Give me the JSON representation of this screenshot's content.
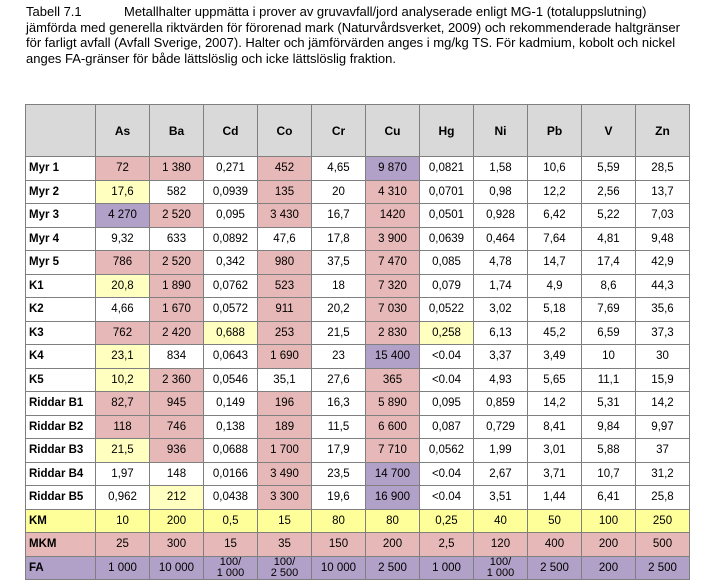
{
  "caption": {
    "label": "Tabell 7.1",
    "text": "Metallhalter uppmätta i prover av gruvavfall/jord analyserade enligt MG-1 (totaluppslutning) jämförda med generella riktvärden för förorenad mark (Naturvårdsverket, 2009) och rekommenderade haltgränser för farligt avfall (Avfall Sverige, 2007). Halter och jämförvärden anges i mg/kg TS. För kadmium, kobolt och nickel anges FA-gränser för både lättslöslig och icke lättslöslig fraktion."
  },
  "colors": {
    "pink": "#e6b8b7",
    "yellow": "#ffffc0",
    "purple": "#b1a0c7",
    "header": "#d9d9d9"
  },
  "headers": [
    "",
    "As",
    "Ba",
    "Cd",
    "Co",
    "Cr",
    "Cu",
    "Hg",
    "Ni",
    "Pb",
    "V",
    "Zn"
  ],
  "rows": [
    {
      "label": "Myr 1",
      "cells": [
        {
          "v": "72",
          "c": "pink"
        },
        {
          "v": "1 380",
          "c": "pink"
        },
        {
          "v": "0,271"
        },
        {
          "v": "452",
          "c": "pink"
        },
        {
          "v": "4,65"
        },
        {
          "v": "9 870",
          "c": "purple"
        },
        {
          "v": "0,0821"
        },
        {
          "v": "1,58"
        },
        {
          "v": "10,6"
        },
        {
          "v": "5,59"
        },
        {
          "v": "28,5"
        }
      ]
    },
    {
      "label": "Myr 2",
      "cells": [
        {
          "v": "17,6",
          "c": "yellow"
        },
        {
          "v": "582"
        },
        {
          "v": "0,0939"
        },
        {
          "v": "135",
          "c": "pink"
        },
        {
          "v": "20"
        },
        {
          "v": "4 310",
          "c": "pink"
        },
        {
          "v": "0,0701"
        },
        {
          "v": "0,98"
        },
        {
          "v": "12,2"
        },
        {
          "v": "2,56"
        },
        {
          "v": "13,7"
        }
      ]
    },
    {
      "label": "Myr 3",
      "cells": [
        {
          "v": "4 270",
          "c": "purple"
        },
        {
          "v": "2 520",
          "c": "pink"
        },
        {
          "v": "0,095"
        },
        {
          "v": "3 430",
          "c": "pink"
        },
        {
          "v": "16,7"
        },
        {
          "v": "1420",
          "c": "pink"
        },
        {
          "v": "0,0501"
        },
        {
          "v": "0,928"
        },
        {
          "v": "6,42"
        },
        {
          "v": "5,22"
        },
        {
          "v": "7,03"
        }
      ]
    },
    {
      "label": "Myr 4",
      "cells": [
        {
          "v": "9,32"
        },
        {
          "v": "633"
        },
        {
          "v": "0,0892"
        },
        {
          "v": "47,6"
        },
        {
          "v": "17,8"
        },
        {
          "v": "3 900",
          "c": "pink"
        },
        {
          "v": "0,0639"
        },
        {
          "v": "0,464"
        },
        {
          "v": "7,64"
        },
        {
          "v": "4,81"
        },
        {
          "v": "9,48"
        }
      ]
    },
    {
      "label": "Myr 5",
      "cells": [
        {
          "v": "786",
          "c": "pink"
        },
        {
          "v": "2 520",
          "c": "pink"
        },
        {
          "v": "0,342"
        },
        {
          "v": "980",
          "c": "pink"
        },
        {
          "v": "37,5"
        },
        {
          "v": "7 470",
          "c": "pink"
        },
        {
          "v": "0,085"
        },
        {
          "v": "4,78"
        },
        {
          "v": "14,7"
        },
        {
          "v": "17,4"
        },
        {
          "v": "42,9"
        }
      ]
    },
    {
      "label": "K1",
      "cells": [
        {
          "v": "20,8",
          "c": "yellow"
        },
        {
          "v": "1 890",
          "c": "pink"
        },
        {
          "v": "0,0762"
        },
        {
          "v": "523",
          "c": "pink"
        },
        {
          "v": "18"
        },
        {
          "v": "7 320",
          "c": "pink"
        },
        {
          "v": "0,079"
        },
        {
          "v": "1,74"
        },
        {
          "v": "4,9"
        },
        {
          "v": "8,6"
        },
        {
          "v": "44,3"
        }
      ]
    },
    {
      "label": "K2",
      "cells": [
        {
          "v": "4,66"
        },
        {
          "v": "1 670",
          "c": "pink"
        },
        {
          "v": "0,0572"
        },
        {
          "v": "911",
          "c": "pink"
        },
        {
          "v": "20,2"
        },
        {
          "v": "7 030",
          "c": "pink"
        },
        {
          "v": "0,0522"
        },
        {
          "v": "3,02"
        },
        {
          "v": "5,18"
        },
        {
          "v": "7,69"
        },
        {
          "v": "35,6"
        }
      ]
    },
    {
      "label": "K3",
      "cells": [
        {
          "v": "762",
          "c": "pink"
        },
        {
          "v": "2 420",
          "c": "pink"
        },
        {
          "v": "0,688",
          "c": "yellow"
        },
        {
          "v": "253",
          "c": "pink"
        },
        {
          "v": "21,5"
        },
        {
          "v": "2 830",
          "c": "pink"
        },
        {
          "v": "0,258",
          "c": "yellow"
        },
        {
          "v": "6,13"
        },
        {
          "v": "45,2"
        },
        {
          "v": "6,59"
        },
        {
          "v": "37,3"
        }
      ]
    },
    {
      "label": "K4",
      "cells": [
        {
          "v": "23,1",
          "c": "yellow"
        },
        {
          "v": "834"
        },
        {
          "v": "0,0643"
        },
        {
          "v": "1 690",
          "c": "pink"
        },
        {
          "v": "23"
        },
        {
          "v": "15 400",
          "c": "purple"
        },
        {
          "v": "<0.04"
        },
        {
          "v": "3,37"
        },
        {
          "v": "3,49"
        },
        {
          "v": "10"
        },
        {
          "v": "30"
        }
      ]
    },
    {
      "label": "K5",
      "cells": [
        {
          "v": "10,2",
          "c": "yellow"
        },
        {
          "v": "2 360",
          "c": "pink"
        },
        {
          "v": "0,0546"
        },
        {
          "v": "35,1"
        },
        {
          "v": "27,6"
        },
        {
          "v": "365",
          "c": "pink"
        },
        {
          "v": "<0.04"
        },
        {
          "v": "4,93"
        },
        {
          "v": "5,65"
        },
        {
          "v": "11,1"
        },
        {
          "v": "15,9"
        }
      ]
    },
    {
      "label": "Riddar B1",
      "cells": [
        {
          "v": "82,7",
          "c": "pink"
        },
        {
          "v": "945",
          "c": "pink"
        },
        {
          "v": "0,149"
        },
        {
          "v": "196",
          "c": "pink"
        },
        {
          "v": "16,3"
        },
        {
          "v": "5 890",
          "c": "pink"
        },
        {
          "v": "0,095"
        },
        {
          "v": "0,859"
        },
        {
          "v": "14,2"
        },
        {
          "v": "5,31"
        },
        {
          "v": "14,2"
        }
      ]
    },
    {
      "label": "Riddar B2",
      "cells": [
        {
          "v": "118",
          "c": "pink"
        },
        {
          "v": "746",
          "c": "pink"
        },
        {
          "v": "0,138"
        },
        {
          "v": "189",
          "c": "pink"
        },
        {
          "v": "11,5"
        },
        {
          "v": "6 600",
          "c": "pink"
        },
        {
          "v": "0,087"
        },
        {
          "v": "0,729"
        },
        {
          "v": "8,41"
        },
        {
          "v": "9,84"
        },
        {
          "v": "9,97"
        }
      ]
    },
    {
      "label": "Riddar B3",
      "cells": [
        {
          "v": "21,5",
          "c": "yellow"
        },
        {
          "v": "936",
          "c": "pink"
        },
        {
          "v": "0,0688"
        },
        {
          "v": "1 700",
          "c": "pink"
        },
        {
          "v": "17,9"
        },
        {
          "v": "7 710",
          "c": "pink"
        },
        {
          "v": "0,0562"
        },
        {
          "v": "1,99"
        },
        {
          "v": "3,01"
        },
        {
          "v": "5,88"
        },
        {
          "v": "37"
        }
      ]
    },
    {
      "label": "Riddar B4",
      "cells": [
        {
          "v": "1,97"
        },
        {
          "v": "148"
        },
        {
          "v": "0,0166"
        },
        {
          "v": "3 490",
          "c": "pink"
        },
        {
          "v": "23,5"
        },
        {
          "v": "14 700",
          "c": "purple"
        },
        {
          "v": "<0.04"
        },
        {
          "v": "2,67"
        },
        {
          "v": "3,71"
        },
        {
          "v": "10,7"
        },
        {
          "v": "31,2"
        }
      ]
    },
    {
      "label": "Riddar B5",
      "cells": [
        {
          "v": "0,962"
        },
        {
          "v": "212",
          "c": "yellow"
        },
        {
          "v": "0,0438"
        },
        {
          "v": "3 300",
          "c": "pink"
        },
        {
          "v": "19,6"
        },
        {
          "v": "16 900",
          "c": "purple"
        },
        {
          "v": "<0.04"
        },
        {
          "v": "3,51"
        },
        {
          "v": "1,44"
        },
        {
          "v": "6,41"
        },
        {
          "v": "25,8"
        }
      ]
    }
  ],
  "limits": [
    {
      "label": "KM",
      "style": "km",
      "cells": [
        "10",
        "200",
        "0,5",
        "15",
        "80",
        "80",
        "0,25",
        "40",
        "50",
        "100",
        "250"
      ]
    },
    {
      "label": "MKM",
      "style": "mkm",
      "cells": [
        "25",
        "300",
        "15",
        "35",
        "150",
        "200",
        "2,5",
        "120",
        "400",
        "200",
        "500"
      ]
    },
    {
      "label": "FA",
      "style": "fa",
      "cells": [
        "1 000",
        "10 000",
        [
          "100/",
          "1 000"
        ],
        [
          "100/",
          "2 500"
        ],
        "10 000",
        "2 500",
        "1 000",
        [
          "100/",
          "1 000"
        ],
        "2 500",
        "200",
        "2 500"
      ]
    }
  ]
}
